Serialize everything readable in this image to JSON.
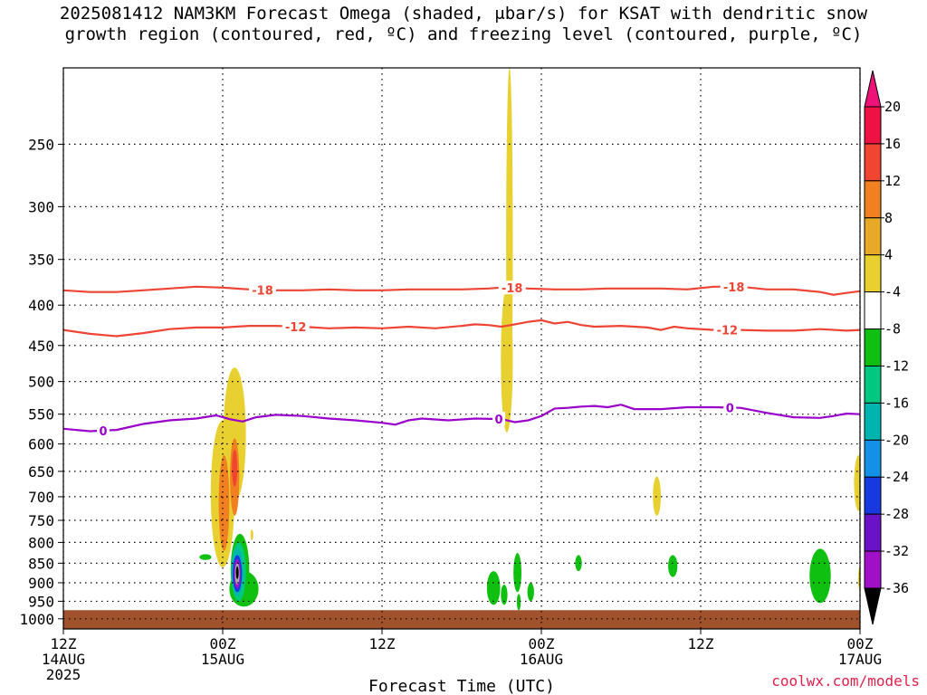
{
  "title_line1": "2025081412 NAM3KM Forecast Omega (shaded, μbar/s) for KSAT with dendritic snow",
  "title_line2": "growth region (contoured, red, ºC) and freezing level (contoured, purple, ºC)",
  "credit": "coolwx.com/models",
  "colors": {
    "ground": "#a0522d",
    "dgz_contour": "#ee4433",
    "freezing_contour": "#9900cc"
  },
  "chart_data": {
    "type": "heatmap",
    "xlabel": "Forecast Time (UTC)",
    "ylabel": "",
    "x_unit": "hours from 2025-08-14 12Z",
    "xlim": [
      0,
      60
    ],
    "ylim": [
      1030,
      200
    ],
    "y_scale": "log-pressure",
    "x_ticks": [
      {
        "x": 0,
        "lines": [
          "12Z",
          "14AUG",
          "2025"
        ]
      },
      {
        "x": 12,
        "lines": [
          "00Z",
          "15AUG"
        ]
      },
      {
        "x": 24,
        "lines": [
          "12Z"
        ]
      },
      {
        "x": 36,
        "lines": [
          "00Z",
          "16AUG"
        ]
      },
      {
        "x": 48,
        "lines": [
          "12Z"
        ]
      },
      {
        "x": 60,
        "lines": [
          "00Z",
          "17AUG"
        ]
      }
    ],
    "y_ticks": [
      250,
      300,
      350,
      400,
      450,
      500,
      550,
      600,
      650,
      700,
      750,
      800,
      850,
      900,
      950,
      1000
    ],
    "grid": true,
    "colorbar": {
      "levels": [
        20,
        16,
        12,
        8,
        4,
        -4,
        -8,
        -12,
        -16,
        -20,
        -24,
        -28,
        -32,
        -36
      ],
      "colors": [
        "#ee1144",
        "#f04530",
        "#f08020",
        "#e8a828",
        "#e8d030",
        "#ffffff",
        "#10c010",
        "#00c880",
        "#00b4b0",
        "#1490e8",
        "#1838e0",
        "#6a12c8",
        "#a010c8",
        "#a8a8a8"
      ]
    },
    "contours": [
      {
        "name": "-18",
        "color": "#ee4433",
        "points": [
          [
            0,
            383
          ],
          [
            2,
            385
          ],
          [
            4,
            385
          ],
          [
            6,
            383
          ],
          [
            8,
            381
          ],
          [
            10,
            379
          ],
          [
            12,
            380
          ],
          [
            14,
            382
          ],
          [
            16,
            383
          ],
          [
            18,
            383
          ],
          [
            20,
            382
          ],
          [
            22,
            383
          ],
          [
            24,
            383
          ],
          [
            26,
            382
          ],
          [
            28,
            382
          ],
          [
            30,
            382
          ],
          [
            32,
            381
          ],
          [
            33,
            380
          ],
          [
            35,
            381
          ],
          [
            37,
            382
          ],
          [
            39,
            382
          ],
          [
            41,
            381
          ],
          [
            43,
            381
          ],
          [
            45,
            381
          ],
          [
            47,
            382
          ],
          [
            49,
            379
          ],
          [
            51,
            379
          ],
          [
            53,
            382
          ],
          [
            55,
            382
          ],
          [
            57,
            385
          ],
          [
            58,
            388
          ],
          [
            59,
            386
          ],
          [
            60,
            384
          ]
        ],
        "labels": [
          15,
          33.8,
          50.5
        ]
      },
      {
        "name": "-12",
        "color": "#ee4433",
        "points": [
          [
            0,
            430
          ],
          [
            2,
            435
          ],
          [
            4,
            438
          ],
          [
            6,
            434
          ],
          [
            8,
            429
          ],
          [
            10,
            427
          ],
          [
            12,
            427
          ],
          [
            14,
            425
          ],
          [
            16,
            425
          ],
          [
            18,
            426
          ],
          [
            20,
            428
          ],
          [
            22,
            427
          ],
          [
            24,
            428
          ],
          [
            26,
            426
          ],
          [
            28,
            428
          ],
          [
            30,
            425
          ],
          [
            31,
            423
          ],
          [
            32,
            424
          ],
          [
            33,
            426
          ],
          [
            34,
            423
          ],
          [
            35,
            420
          ],
          [
            36,
            418
          ],
          [
            37,
            422
          ],
          [
            38,
            420
          ],
          [
            39,
            424
          ],
          [
            40,
            426
          ],
          [
            42,
            425
          ],
          [
            44,
            427
          ],
          [
            45,
            430
          ],
          [
            46,
            426
          ],
          [
            47,
            428
          ],
          [
            49,
            430
          ],
          [
            51,
            430
          ],
          [
            53,
            431
          ],
          [
            55,
            431
          ],
          [
            57,
            429
          ],
          [
            59,
            431
          ],
          [
            60,
            430
          ]
        ],
        "labels": [
          17.5,
          50
        ]
      },
      {
        "name": "0",
        "color": "#9900cc",
        "points": [
          [
            0,
            574
          ],
          [
            2,
            578
          ],
          [
            4,
            576
          ],
          [
            6,
            566
          ],
          [
            8,
            560
          ],
          [
            10,
            557
          ],
          [
            11.5,
            552
          ],
          [
            12.5,
            558
          ],
          [
            13.5,
            562
          ],
          [
            14.5,
            555
          ],
          [
            16,
            551
          ],
          [
            18,
            553
          ],
          [
            20,
            557
          ],
          [
            22,
            560
          ],
          [
            24,
            564
          ],
          [
            25,
            567
          ],
          [
            26,
            560
          ],
          [
            27,
            557
          ],
          [
            29,
            560
          ],
          [
            31,
            557
          ],
          [
            33,
            558
          ],
          [
            34,
            563
          ],
          [
            35,
            560
          ],
          [
            36,
            553
          ],
          [
            37,
            541
          ],
          [
            38,
            540
          ],
          [
            39,
            538
          ],
          [
            40,
            537
          ],
          [
            41,
            539
          ],
          [
            42,
            535
          ],
          [
            43,
            542
          ],
          [
            45,
            542
          ],
          [
            47,
            539
          ],
          [
            49,
            539
          ],
          [
            51,
            540
          ],
          [
            53,
            548
          ],
          [
            55,
            555
          ],
          [
            57,
            556
          ],
          [
            58,
            553
          ],
          [
            59,
            549
          ],
          [
            60,
            550
          ]
        ],
        "labels": [
          3,
          32.8,
          50.2
        ]
      }
    ],
    "shaded_cells": [
      {
        "x": 12.9,
        "p_top": 480,
        "p_bottom": 710,
        "width": 1.7,
        "color": "#e8d030"
      },
      {
        "x": 12.0,
        "p_top": 560,
        "p_bottom": 860,
        "width": 1.8,
        "color": "#e8d030"
      },
      {
        "x": 12.1,
        "p_top": 620,
        "p_bottom": 820,
        "width": 0.8,
        "color": "#f08020"
      },
      {
        "x": 12.9,
        "p_top": 590,
        "p_bottom": 740,
        "width": 0.7,
        "color": "#f08020"
      },
      {
        "x": 12.9,
        "p_top": 610,
        "p_bottom": 680,
        "width": 0.4,
        "color": "#f04530"
      },
      {
        "x": 13.6,
        "p_top": 870,
        "p_bottom": 965,
        "width": 2.2,
        "color": "#10c010"
      },
      {
        "x": 13.3,
        "p_top": 780,
        "p_bottom": 960,
        "width": 1.4,
        "color": "#10c010"
      },
      {
        "x": 13.2,
        "p_top": 800,
        "p_bottom": 950,
        "width": 1.1,
        "color": "#00c880"
      },
      {
        "x": 13.1,
        "p_top": 815,
        "p_bottom": 935,
        "width": 0.9,
        "color": "#00b4b0"
      },
      {
        "x": 13.1,
        "p_top": 830,
        "p_bottom": 925,
        "width": 0.7,
        "color": "#1838e0"
      },
      {
        "x": 13.1,
        "p_top": 840,
        "p_bottom": 915,
        "width": 0.5,
        "color": "#a010c8"
      },
      {
        "x": 13.1,
        "p_top": 850,
        "p_bottom": 905,
        "width": 0.35,
        "color": "#a8a8a8"
      },
      {
        "x": 13.1,
        "p_top": 858,
        "p_bottom": 890,
        "width": 0.15,
        "color": "#000000"
      },
      {
        "x": 10.7,
        "p_top": 828,
        "p_bottom": 842,
        "width": 0.9,
        "color": "#10c010"
      },
      {
        "x": 14.2,
        "p_top": 770,
        "p_bottom": 795,
        "width": 0.2,
        "color": "#e8d030"
      },
      {
        "x": 33.6,
        "p_top": 200,
        "p_bottom": 560,
        "width": 0.5,
        "color": "#e8d030"
      },
      {
        "x": 33.4,
        "p_top": 380,
        "p_bottom": 580,
        "width": 0.9,
        "color": "#e8d030"
      },
      {
        "x": 32.4,
        "p_top": 870,
        "p_bottom": 960,
        "width": 1.0,
        "color": "#10c010"
      },
      {
        "x": 33.2,
        "p_top": 905,
        "p_bottom": 960,
        "width": 0.5,
        "color": "#10c010"
      },
      {
        "x": 34.2,
        "p_top": 825,
        "p_bottom": 925,
        "width": 0.6,
        "color": "#10c010"
      },
      {
        "x": 34.3,
        "p_top": 930,
        "p_bottom": 975,
        "width": 0.3,
        "color": "#10c010"
      },
      {
        "x": 35.2,
        "p_top": 900,
        "p_bottom": 950,
        "width": 0.5,
        "color": "#10c010"
      },
      {
        "x": 38.8,
        "p_top": 830,
        "p_bottom": 870,
        "width": 0.5,
        "color": "#10c010"
      },
      {
        "x": 44.7,
        "p_top": 660,
        "p_bottom": 740,
        "width": 0.6,
        "color": "#e8d030"
      },
      {
        "x": 45.9,
        "p_top": 830,
        "p_bottom": 885,
        "width": 0.7,
        "color": "#10c010"
      },
      {
        "x": 57.0,
        "p_top": 815,
        "p_bottom": 955,
        "width": 1.6,
        "color": "#10c010"
      },
      {
        "x": 59.9,
        "p_top": 620,
        "p_bottom": 730,
        "width": 0.7,
        "color": "#e8d030"
      },
      {
        "x": 60.0,
        "p_top": 860,
        "p_bottom": 920,
        "width": 0.3,
        "color": "#e8d030"
      }
    ],
    "ground": {
      "p_top": 975
    }
  }
}
